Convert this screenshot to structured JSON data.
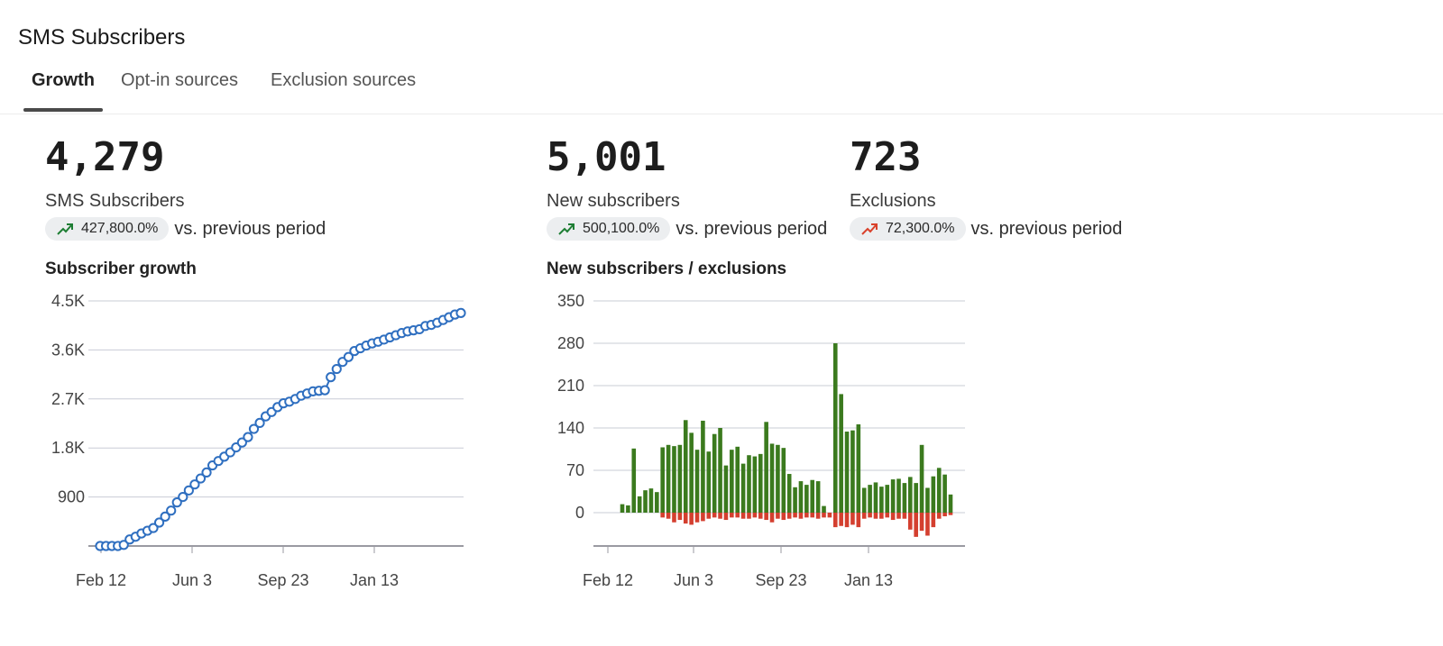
{
  "page": {
    "title": "SMS Subscribers"
  },
  "tabs": [
    {
      "label": "Growth",
      "active": true
    },
    {
      "label": "Opt-in sources",
      "active": false
    },
    {
      "label": "Exclusion sources",
      "active": false
    }
  ],
  "metrics": [
    {
      "value": "4,279",
      "label": "SMS Subscribers",
      "change": "427,800.0%",
      "trend": "up",
      "trend_color": "#1e7e34",
      "vs": "vs. previous period"
    },
    {
      "value": "5,001",
      "label": "New subscribers",
      "change": "500,100.0%",
      "trend": "up",
      "trend_color": "#1e7e34",
      "vs": "vs. previous period"
    },
    {
      "value": "723",
      "label": "Exclusions",
      "change": "72,300.0%",
      "trend": "up",
      "trend_color": "#d9412b",
      "vs": "vs. previous period"
    }
  ],
  "charts": {
    "growth_title": "Subscriber growth",
    "bars_title": "New subscribers / exclusions"
  },
  "chart_data": [
    {
      "type": "line",
      "title": "Subscriber growth",
      "x_ticks": [
        "Feb 12",
        "Jun 3",
        "Sep 23",
        "Jan 13"
      ],
      "y_ticks": [
        "900",
        "1.8K",
        "2.7K",
        "3.6K",
        "4.5K"
      ],
      "ylim": [
        0,
        4500
      ],
      "grid": true,
      "line_color": "#2f6fc0",
      "values": [
        0,
        0,
        0,
        0,
        20,
        120,
        170,
        230,
        280,
        330,
        430,
        540,
        650,
        800,
        900,
        1020,
        1130,
        1240,
        1350,
        1480,
        1560,
        1640,
        1720,
        1810,
        1900,
        2000,
        2150,
        2260,
        2380,
        2460,
        2550,
        2620,
        2650,
        2700,
        2760,
        2800,
        2840,
        2850,
        2860,
        3100,
        3250,
        3380,
        3470,
        3580,
        3630,
        3680,
        3720,
        3750,
        3790,
        3830,
        3870,
        3910,
        3940,
        3960,
        3980,
        4040,
        4060,
        4100,
        4150,
        4200,
        4250,
        4279
      ]
    },
    {
      "type": "bar",
      "title": "New subscribers / exclusions",
      "x_ticks": [
        "Feb 12",
        "Jun 3",
        "Sep 23",
        "Jan 13"
      ],
      "y_ticks": [
        "0",
        "70",
        "140",
        "210",
        "280",
        "350"
      ],
      "ylim": [
        -55,
        350
      ],
      "grid": true,
      "series": [
        {
          "name": "New subscribers",
          "color": "#3b7a1e",
          "values": [
            14,
            12,
            106,
            27,
            37,
            40,
            34,
            108,
            112,
            110,
            112,
            153,
            132,
            104,
            152,
            101,
            130,
            140,
            78,
            104,
            109,
            81,
            95,
            93,
            97,
            150,
            114,
            112,
            107,
            64,
            42,
            52,
            46,
            54,
            52,
            11,
            0,
            280,
            196,
            134,
            136,
            146,
            41,
            46,
            50,
            43,
            46,
            55,
            56,
            49,
            59,
            49,
            112,
            41,
            60,
            74,
            63,
            30
          ]
        },
        {
          "name": "Exclusions",
          "color": "#d43f2f",
          "values": [
            0,
            0,
            0,
            0,
            0,
            0,
            0,
            -8,
            -10,
            -16,
            -12,
            -18,
            -20,
            -16,
            -14,
            -10,
            -8,
            -10,
            -12,
            -8,
            -8,
            -10,
            -10,
            -8,
            -10,
            -12,
            -16,
            -10,
            -12,
            -10,
            -8,
            -10,
            -8,
            -8,
            -10,
            -8,
            -8,
            -24,
            -22,
            -24,
            -20,
            -24,
            -10,
            -8,
            -10,
            -10,
            -8,
            -12,
            -10,
            -10,
            -28,
            -40,
            -30,
            -38,
            -24,
            -10,
            -6,
            -4
          ]
        }
      ]
    }
  ]
}
